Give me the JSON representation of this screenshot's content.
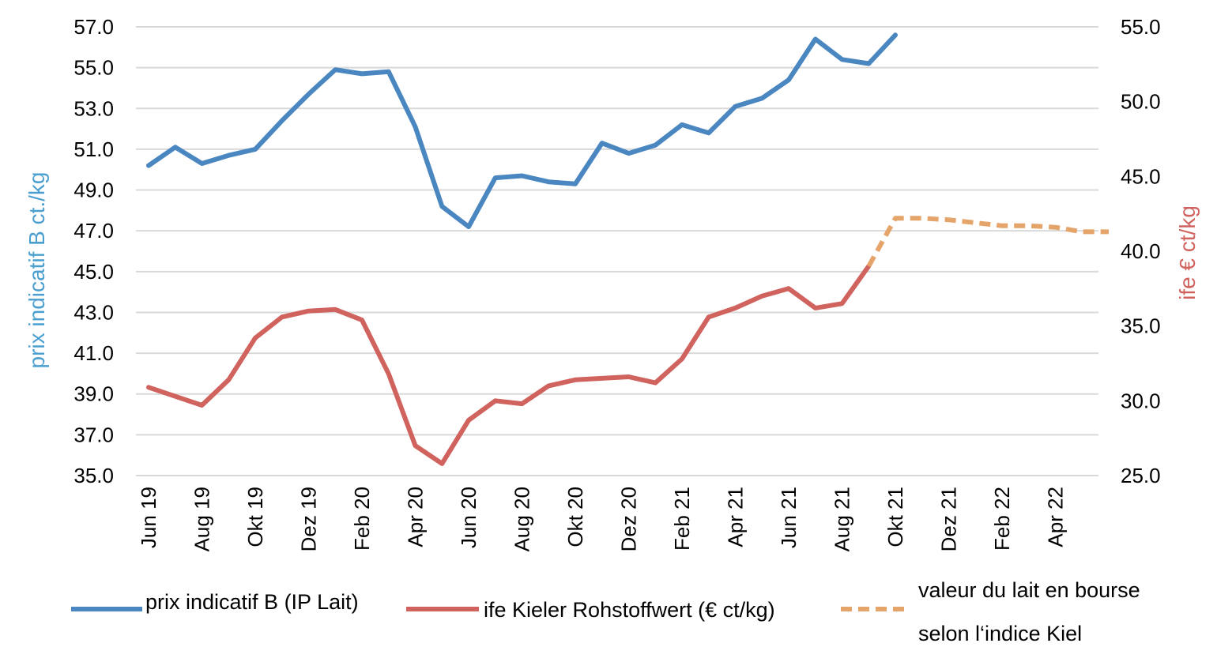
{
  "chart_data": {
    "type": "line",
    "ylabel_left": "prix indicatif B ct./kg",
    "ylabel_right": "ife € ct/kg",
    "ylim_left": [
      35,
      57
    ],
    "ylim_right": [
      25,
      55
    ],
    "yticks_left": [
      "57.0",
      "55.0",
      "53.0",
      "51.0",
      "49.0",
      "47.0",
      "45.0",
      "43.0",
      "41.0",
      "39.0",
      "37.0",
      "35.0"
    ],
    "yticks_right": [
      "55.0",
      "50.0",
      "45.0",
      "40.0",
      "35.0",
      "30.0",
      "25.0"
    ],
    "x_tick_labels": [
      "Jun 19",
      "Aug 19",
      "Okt 19",
      "Dez 19",
      "Feb 20",
      "Apr 20",
      "Jun 20",
      "Aug 20",
      "Okt 20",
      "Dez 20",
      "Feb 21",
      "Apr 21",
      "Jun 21",
      "Aug 21",
      "Okt 21",
      "Dez 21",
      "Feb 22",
      "Apr 22"
    ],
    "months": [
      "Jun 19",
      "Jul 19",
      "Aug 19",
      "Sep 19",
      "Okt 19",
      "Nov 19",
      "Dez 19",
      "Jan 20",
      "Feb 20",
      "Mär 20",
      "Apr 20",
      "Mai 20",
      "Jun 20",
      "Jul 20",
      "Aug 20",
      "Sep 20",
      "Okt 20",
      "Nov 20",
      "Dez 20",
      "Jan 21",
      "Feb 21",
      "Mär 21",
      "Apr 21",
      "Mai 21",
      "Jun 21",
      "Jul 21",
      "Aug 21",
      "Sep 21",
      "Okt 21",
      "Nov 21",
      "Dez 21",
      "Jan 22",
      "Feb 22",
      "Mär 22",
      "Apr 22",
      "Mai 22"
    ],
    "grid": true,
    "legend_position": "bottom",
    "series": [
      {
        "name": "prix indicatif B (IP Lait)",
        "axis": "left",
        "color": "#4a86c0",
        "style": "solid",
        "start_month": "Jun 19",
        "values": [
          50.2,
          51.1,
          50.3,
          50.7,
          51.0,
          52.4,
          53.7,
          54.9,
          54.7,
          54.8,
          52.1,
          48.2,
          47.2,
          49.6,
          49.7,
          49.4,
          49.3,
          51.3,
          50.8,
          51.2,
          52.2,
          51.8,
          53.1,
          53.5,
          54.4,
          56.4,
          55.4,
          55.2,
          56.6
        ]
      },
      {
        "name": "ife Kieler Rohstoffwert (€ ct/kg)",
        "axis": "right",
        "color": "#d0635e",
        "style": "solid",
        "start_month": "Jun 19",
        "values": [
          30.9,
          30.3,
          29.7,
          31.4,
          34.2,
          35.6,
          36.0,
          36.1,
          35.4,
          31.8,
          27.0,
          25.8,
          28.7,
          30.0,
          29.8,
          31.0,
          31.4,
          31.5,
          31.6,
          31.2,
          32.8,
          35.6,
          36.2,
          37.0,
          37.5,
          36.2,
          36.5,
          39.0
        ]
      },
      {
        "name": "valeur du lait en bourse selon l‘indice Kiel",
        "name_lines": [
          "valeur du lait en bourse",
          "selon l‘indice Kiel"
        ],
        "axis": "right",
        "color": "#e5a46a",
        "style": "dashed",
        "start_month": "Sep 21",
        "values": [
          39.0,
          42.2,
          42.2,
          42.1,
          41.9,
          41.7,
          41.7,
          41.6,
          41.3,
          41.3
        ]
      }
    ]
  }
}
